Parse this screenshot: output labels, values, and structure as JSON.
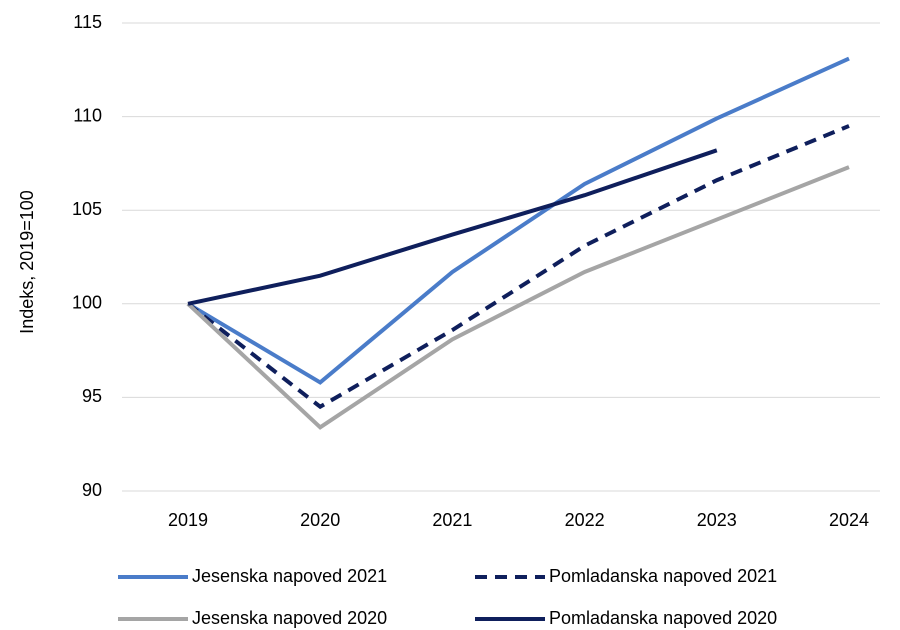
{
  "chart_data": {
    "type": "line",
    "y_label": "Indeks, 2019=100",
    "categories": [
      "2019",
      "2020",
      "2021",
      "2022",
      "2023",
      "2024"
    ],
    "series": [
      {
        "name": "Jesenska napoved 2021",
        "color": "#4a7cc9",
        "dashed": false,
        "values": [
          100,
          95.8,
          101.7,
          106.4,
          109.9,
          113.1
        ]
      },
      {
        "name": "Pomladanska napoved 2021",
        "color": "#0f1f5c",
        "dashed": true,
        "values": [
          100,
          94.5,
          98.6,
          103.1,
          106.6,
          109.5
        ]
      },
      {
        "name": "Jesenska napoved 2020",
        "color": "#a5a5a5",
        "dashed": false,
        "values": [
          100,
          93.4,
          98.1,
          101.7,
          104.5,
          107.3
        ]
      },
      {
        "name": "Pomladanska napoved 2020",
        "color": "#0f1f5c",
        "dashed": false,
        "values": [
          100,
          101.5,
          103.7,
          105.8,
          108.2,
          null
        ]
      }
    ],
    "ylim": [
      90,
      115
    ],
    "yticks": [
      90,
      95,
      100,
      105,
      110,
      115
    ],
    "grid": true
  }
}
